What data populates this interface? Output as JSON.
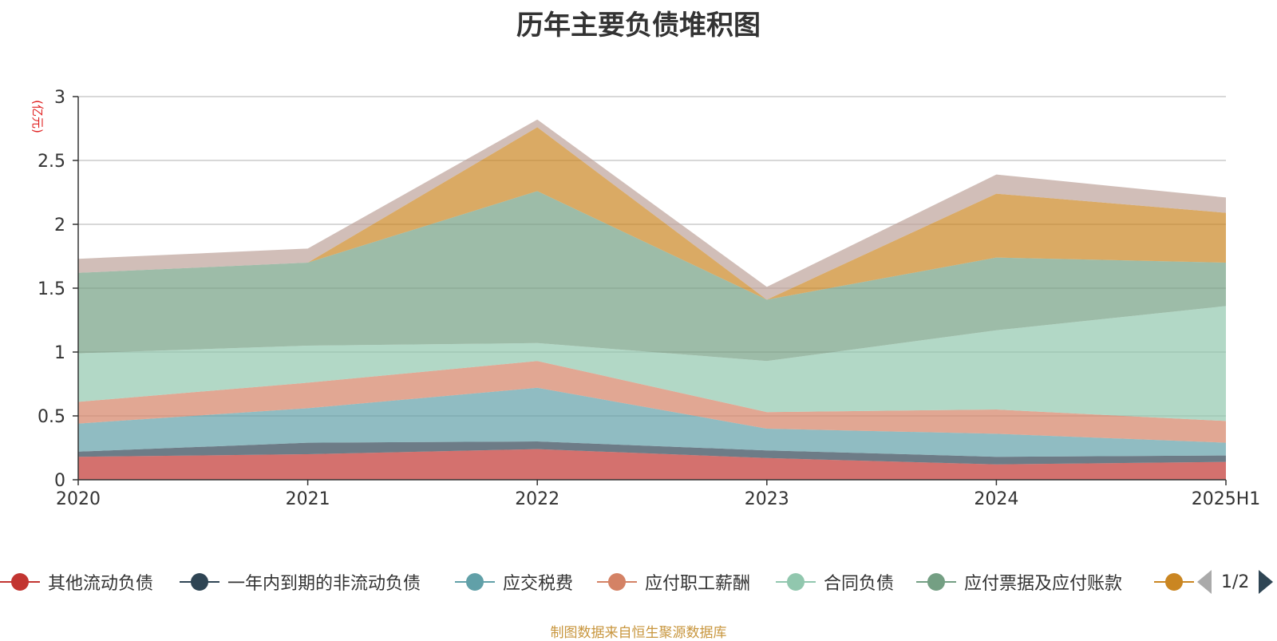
{
  "title": "历年主要负债堆积图",
  "footer": "制图数据来自恒生聚源数据库",
  "legend_page": "1/2",
  "chart_data": {
    "type": "area",
    "stacked": true,
    "title": "历年主要负债堆积图",
    "ylabel": "(亿元)",
    "xlabel": "",
    "categories": [
      "2020",
      "2021",
      "2022",
      "2023",
      "2024",
      "2025H1"
    ],
    "ylim": [
      0,
      3
    ],
    "yticks": [
      "0",
      "0.5",
      "1",
      "1.5",
      "2",
      "2.5",
      "3"
    ],
    "grid": true,
    "legend_position": "bottom",
    "series": [
      {
        "name": "其他流动负债",
        "color": "#c23531",
        "values": [
          0.18,
          0.2,
          0.24,
          0.17,
          0.12,
          0.14
        ]
      },
      {
        "name": "一年内到期的非流动负债",
        "color": "#2f4554",
        "values": [
          0.04,
          0.09,
          0.06,
          0.06,
          0.06,
          0.05
        ]
      },
      {
        "name": "应交税费",
        "color": "#61a0a8",
        "values": [
          0.22,
          0.27,
          0.42,
          0.17,
          0.18,
          0.1
        ]
      },
      {
        "name": "应付职工薪酬",
        "color": "#d48265",
        "values": [
          0.17,
          0.2,
          0.21,
          0.13,
          0.19,
          0.17
        ]
      },
      {
        "name": "合同负债",
        "color": "#91c7ae",
        "values": [
          0.38,
          0.29,
          0.14,
          0.4,
          0.62,
          0.9
        ]
      },
      {
        "name": "应付票据及应付账款",
        "color": "#749f83",
        "values": [
          0.63,
          0.65,
          1.19,
          0.48,
          0.57,
          0.34
        ]
      },
      {
        "name": "",
        "color": "#ca8622",
        "values": [
          0.0,
          0.0,
          0.5,
          0.0,
          0.5,
          0.39
        ]
      },
      {
        "name": "",
        "color": "#bda29a",
        "values": [
          0.11,
          0.11,
          0.06,
          0.1,
          0.15,
          0.12
        ]
      }
    ]
  },
  "legend": [
    {
      "label": "其他流动负债",
      "color": "#c23531"
    },
    {
      "label": "一年内到期的非流动负债",
      "color": "#2f4554"
    },
    {
      "label": "应交税费",
      "color": "#61a0a8"
    },
    {
      "label": "应付职工薪酬",
      "color": "#d48265"
    },
    {
      "label": "合同负债",
      "color": "#91c7ae"
    },
    {
      "label": "应付票据及应付账款",
      "color": "#749f83"
    },
    {
      "label": "",
      "color": "#ca8622"
    }
  ]
}
